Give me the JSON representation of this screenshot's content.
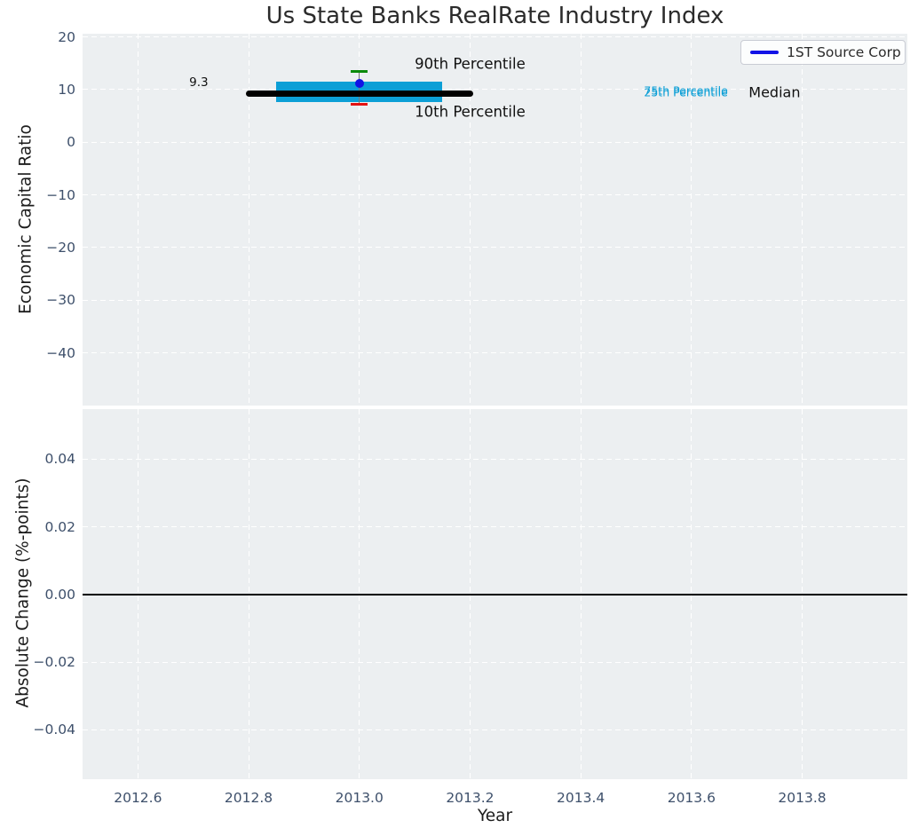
{
  "figure": {
    "title": "Us State Banks RealRate Industry Index",
    "legend": {
      "label": "1ST Source Corp"
    }
  },
  "colors": {
    "background": "#ffffff",
    "plot_bg": "#eceff1",
    "grid": "#ffffff",
    "tick_label": "#3e506b",
    "text": "#1c1c1c",
    "box_fill": "#0c9fd6",
    "median_line": "#000000",
    "p90_cap": "#0a8a0a",
    "p10_cap": "#e31212",
    "whisker": "#777777",
    "company": "#1212e6",
    "zero_line": "#000000",
    "legend_border": "#c9ccd4"
  },
  "chart_data": [
    {
      "type": "boxplot",
      "title": "Us State Banks RealRate Industry Index",
      "ylabel": "Economic Capital Ratio",
      "xlim": [
        2012.5,
        2013.99
      ],
      "ylim": [
        -50,
        20.6
      ],
      "grid": true,
      "legend_position": "upper right",
      "yticks": [
        {
          "v": 20,
          "label": "20"
        },
        {
          "v": 10,
          "label": "10"
        },
        {
          "v": 0,
          "label": "0"
        },
        {
          "v": -10,
          "label": "−10"
        },
        {
          "v": -20,
          "label": "−20"
        },
        {
          "v": -30,
          "label": "−30"
        },
        {
          "v": -40,
          "label": "−40"
        }
      ],
      "series": [
        {
          "name": "1ST Source Corp",
          "year": 2013.0,
          "value": 11.2,
          "percentiles": {
            "p10": 7.2,
            "p25": 7.7,
            "median": 9.3,
            "p75": 11.5,
            "p90": 13.4
          },
          "median_xspan": [
            2012.8,
            2013.2
          ],
          "box_xspan": [
            2012.85,
            2013.15
          ],
          "cap_xspan": [
            2012.985,
            2013.015
          ]
        }
      ],
      "annotations": [
        {
          "text": "90th Percentile",
          "x": 2013.2,
          "y": 14.8,
          "size": 16.5,
          "color": "#111111"
        },
        {
          "text": "10th Percentile",
          "x": 2013.2,
          "y": 5.7,
          "size": 16.5,
          "color": "#111111"
        },
        {
          "text": "9.3",
          "x": 2012.71,
          "y": 11.3,
          "size": 13.5,
          "color": "#111111"
        },
        {
          "text": "75th Percentile",
          "x": 2013.59,
          "y": 9.9,
          "size": 12.5,
          "color": "#0c9fd6"
        },
        {
          "text": "25th Percentile",
          "x": 2013.59,
          "y": 9.4,
          "size": 12.5,
          "color": "#0c9fd6"
        },
        {
          "text": "Median",
          "x": 2013.75,
          "y": 9.5,
          "size": 16,
          "color": "#111111"
        }
      ]
    },
    {
      "type": "line",
      "xlabel": "Year",
      "ylabel": "Absolute Change (%-points)",
      "xlim": [
        2012.5,
        2013.99
      ],
      "ylim": [
        -0.0546,
        0.0548
      ],
      "grid": true,
      "zero_line": 0.0,
      "yticks": [
        {
          "v": 0.04,
          "label": "0.04"
        },
        {
          "v": 0.02,
          "label": "0.02"
        },
        {
          "v": 0.0,
          "label": "0.00"
        },
        {
          "v": -0.02,
          "label": "−0.02"
        },
        {
          "v": -0.04,
          "label": "−0.04"
        }
      ],
      "xticks": [
        {
          "v": 2012.6,
          "label": "2012.6"
        },
        {
          "v": 2012.8,
          "label": "2012.8"
        },
        {
          "v": 2013.0,
          "label": "2013.0"
        },
        {
          "v": 2013.2,
          "label": "2013.2"
        },
        {
          "v": 2013.4,
          "label": "2013.4"
        },
        {
          "v": 2013.6,
          "label": "2013.6"
        },
        {
          "v": 2013.8,
          "label": "2013.8"
        }
      ],
      "series": []
    }
  ]
}
